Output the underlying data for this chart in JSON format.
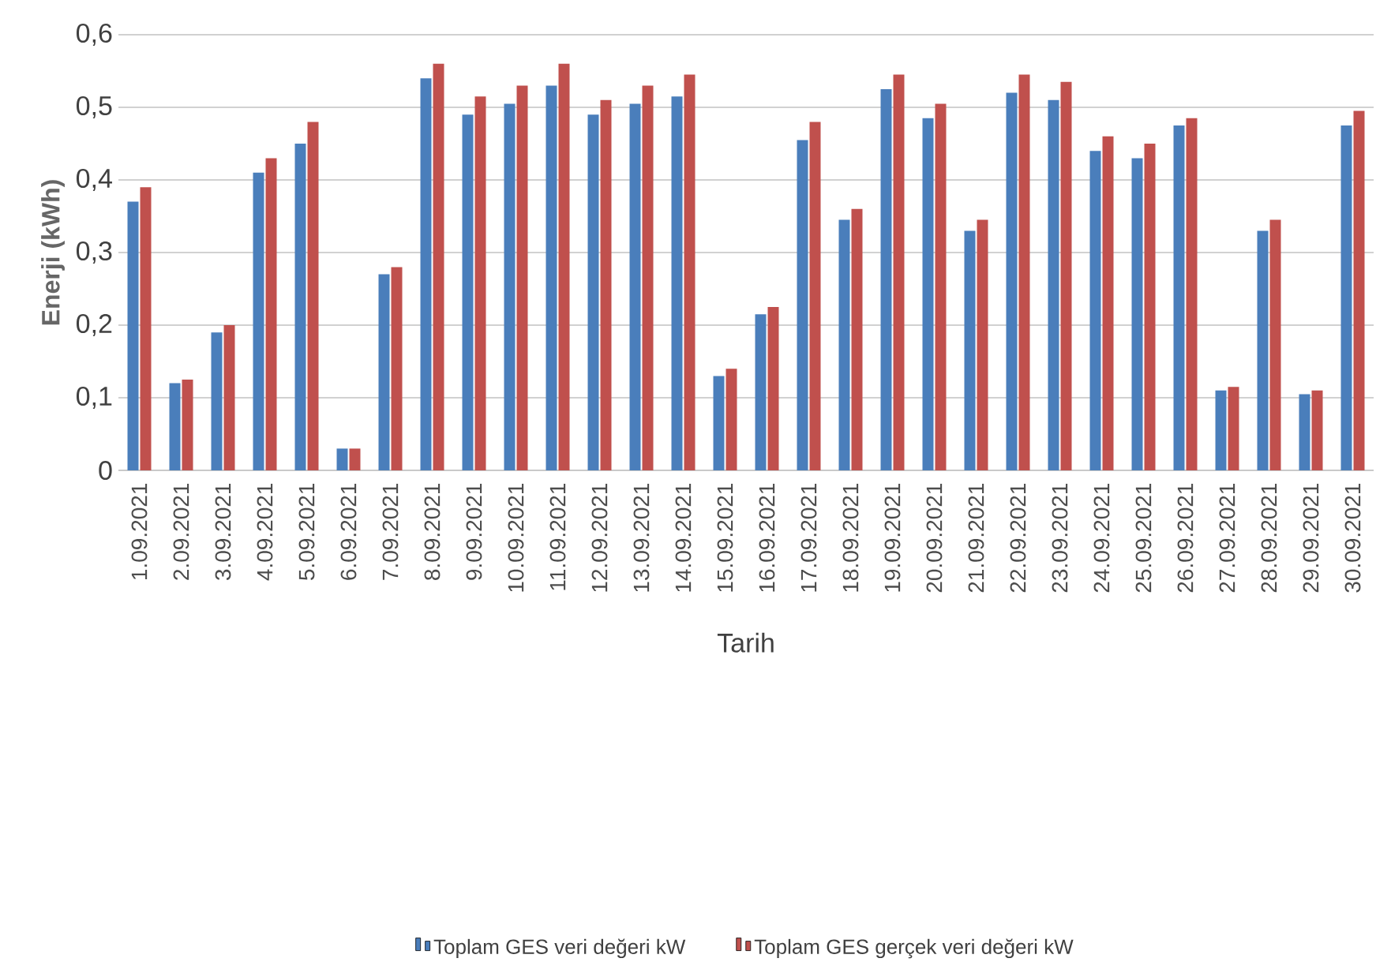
{
  "chart_data": {
    "type": "bar",
    "xlabel": "Tarih",
    "ylabel": "Enerji (kWh)",
    "categories": [
      "1.09.2021",
      "2.09.2021",
      "3.09.2021",
      "4.09.2021",
      "5.09.2021",
      "6.09.2021",
      "7.09.2021",
      "8.09.2021",
      "9.09.2021",
      "10.09.2021",
      "11.09.2021",
      "12.09.2021",
      "13.09.2021",
      "14.09.2021",
      "15.09.2021",
      "16.09.2021",
      "17.09.2021",
      "18.09.2021",
      "19.09.2021",
      "20.09.2021",
      "21.09.2021",
      "22.09.2021",
      "23.09.2021",
      "24.09.2021",
      "25.09.2021",
      "26.09.2021",
      "27.09.2021",
      "28.09.2021",
      "29.09.2021",
      "30.09.2021"
    ],
    "series": [
      {
        "name": "Toplam GES veri değeri kW",
        "color": "#4a7ebb",
        "values": [
          0.37,
          0.12,
          0.19,
          0.41,
          0.45,
          0.03,
          0.27,
          0.54,
          0.49,
          0.505,
          0.53,
          0.49,
          0.505,
          0.515,
          0.13,
          0.215,
          0.455,
          0.345,
          0.525,
          0.485,
          0.33,
          0.52,
          0.51,
          0.44,
          0.43,
          0.475,
          0.11,
          0.33,
          0.105,
          0.475
        ]
      },
      {
        "name": "Toplam GES gerçek veri değeri kW",
        "color": "#c0504d",
        "values": [
          0.39,
          0.125,
          0.2,
          0.43,
          0.48,
          0.03,
          0.28,
          0.56,
          0.515,
          0.53,
          0.56,
          0.51,
          0.53,
          0.545,
          0.14,
          0.225,
          0.48,
          0.36,
          0.545,
          0.505,
          0.345,
          0.545,
          0.535,
          0.46,
          0.45,
          0.485,
          0.115,
          0.345,
          0.11,
          0.495
        ]
      }
    ],
    "ylim": [
      0,
      0.6
    ],
    "yticks": [
      0,
      {
        "value": 0.1,
        "label": "0,1"
      },
      {
        "value": 0.2,
        "label": "0,2"
      },
      {
        "value": 0.3,
        "label": "0,3"
      },
      {
        "value": 0.4,
        "label": "0,4"
      },
      {
        "value": 0.5,
        "label": "0,5"
      },
      {
        "value": 0.6,
        "label": "0,6"
      }
    ],
    "grid": "y",
    "legend": "bottom"
  }
}
